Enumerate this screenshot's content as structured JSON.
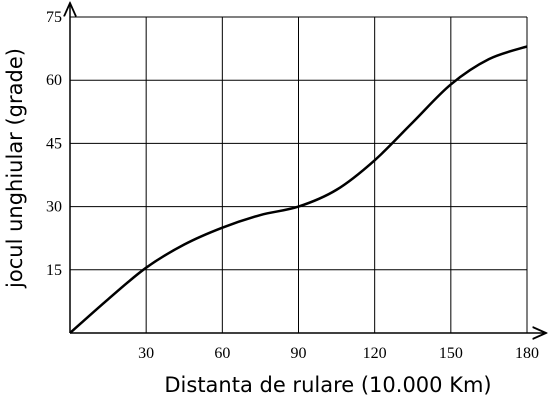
{
  "chart_data": {
    "type": "line",
    "x_label": "Distanta de rulare (10.000 Km)",
    "y_label": "jocul unghiular (grade)",
    "x": [
      0,
      15,
      30,
      45,
      60,
      75,
      90,
      105,
      120,
      135,
      150,
      165,
      180
    ],
    "series": [
      {
        "color": "#000000",
        "values": [
          0,
          8,
          15.5,
          21,
          25,
          28,
          30,
          34,
          41,
          50,
          59,
          65,
          68
        ]
      }
    ],
    "xlim": [
      0,
      180
    ],
    "ylim": [
      0,
      75
    ],
    "xticks": [
      30,
      60,
      90,
      120,
      150,
      180
    ],
    "yticks": [
      15,
      30,
      45,
      60,
      75
    ],
    "grid": true
  }
}
